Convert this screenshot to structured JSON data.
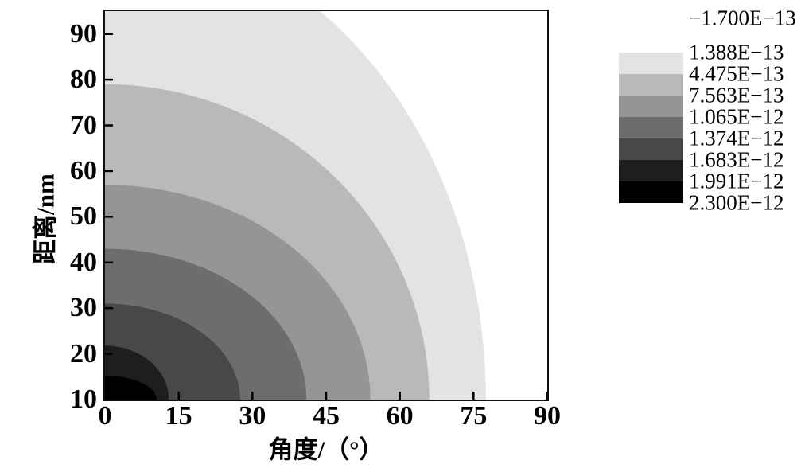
{
  "axes": {
    "x": {
      "title": "角度/（°）",
      "ticks": [
        0,
        15,
        30,
        45,
        60,
        75,
        90
      ],
      "range": [
        0,
        90
      ]
    },
    "y": {
      "title": "距离/nm",
      "ticks": [
        10,
        20,
        30,
        40,
        50,
        60,
        70,
        80,
        90
      ],
      "range": [
        10,
        95
      ]
    }
  },
  "legend": {
    "labels": [
      "−1.700E−13",
      "1.388E−13",
      "4.475E−13",
      "7.563E−13",
      "1.065E−12",
      "1.374E−12",
      "1.683E−12",
      "1.991E−12",
      "2.300E−12"
    ],
    "swatch_colors": [
      "#e3e3e3",
      "#b9b9b9",
      "#959595",
      "#6d6d6d",
      "#484848",
      "#1e1e1e",
      "#000000"
    ]
  },
  "chart_data": {
    "type": "contour-filled",
    "xlabel": "角度/（°）",
    "ylabel": "距离/nm",
    "xlim": [
      0,
      90
    ],
    "ylim": [
      10,
      95
    ],
    "grid": false,
    "legend_position": "right",
    "levels": [
      -1.7e-13,
      1.388e-13,
      4.475e-13,
      7.563e-13,
      1.065e-12,
      1.374e-12,
      1.683e-12,
      1.991e-12,
      2.3e-12
    ],
    "palette_low_to_high": [
      "#ffffff",
      "#e3e3e3",
      "#b9b9b9",
      "#959595",
      "#6d6d6d",
      "#484848",
      "#1e1e1e",
      "#000000"
    ],
    "background_band": {
      "value_range": [
        -1.7e-13,
        1.388e-13
      ],
      "fill": "#ffffff"
    },
    "contour_bands": [
      {
        "outer_level": 1.388e-13,
        "inner_level": 4.475e-13,
        "fill": "#e3e3e3",
        "ellipse_center": [
          0,
          10
        ],
        "a_deg": 77.5,
        "b_nm": 103
      },
      {
        "outer_level": 4.475e-13,
        "inner_level": 7.563e-13,
        "fill": "#b9b9b9",
        "ellipse_center": [
          0,
          10
        ],
        "a_deg": 66,
        "b_nm": 69
      },
      {
        "outer_level": 7.563e-13,
        "inner_level": 1.065e-12,
        "fill": "#959595",
        "ellipse_center": [
          0,
          10
        ],
        "a_deg": 54,
        "b_nm": 47
      },
      {
        "outer_level": 1.065e-12,
        "inner_level": 1.374e-12,
        "fill": "#6d6d6d",
        "ellipse_center": [
          0,
          10
        ],
        "a_deg": 41,
        "b_nm": 33
      },
      {
        "outer_level": 1.374e-12,
        "inner_level": 1.683e-12,
        "fill": "#484848",
        "ellipse_center": [
          0,
          10
        ],
        "a_deg": 27.5,
        "b_nm": 21
      },
      {
        "outer_level": 1.683e-12,
        "inner_level": 1.991e-12,
        "fill": "#1e1e1e",
        "ellipse_center": [
          0,
          10
        ],
        "a_deg": 13,
        "b_nm": 11.8
      },
      {
        "outer_level": 1.991e-12,
        "inner_level": 2.3e-12,
        "fill": "#000000",
        "ellipse_center": [
          0,
          10
        ],
        "a_deg": 10.5,
        "b_nm": 5.2
      }
    ],
    "frame_color": "#111111",
    "tick_style": {
      "direction": "in",
      "length": 10,
      "width": 2.5,
      "color": "#000000"
    }
  }
}
